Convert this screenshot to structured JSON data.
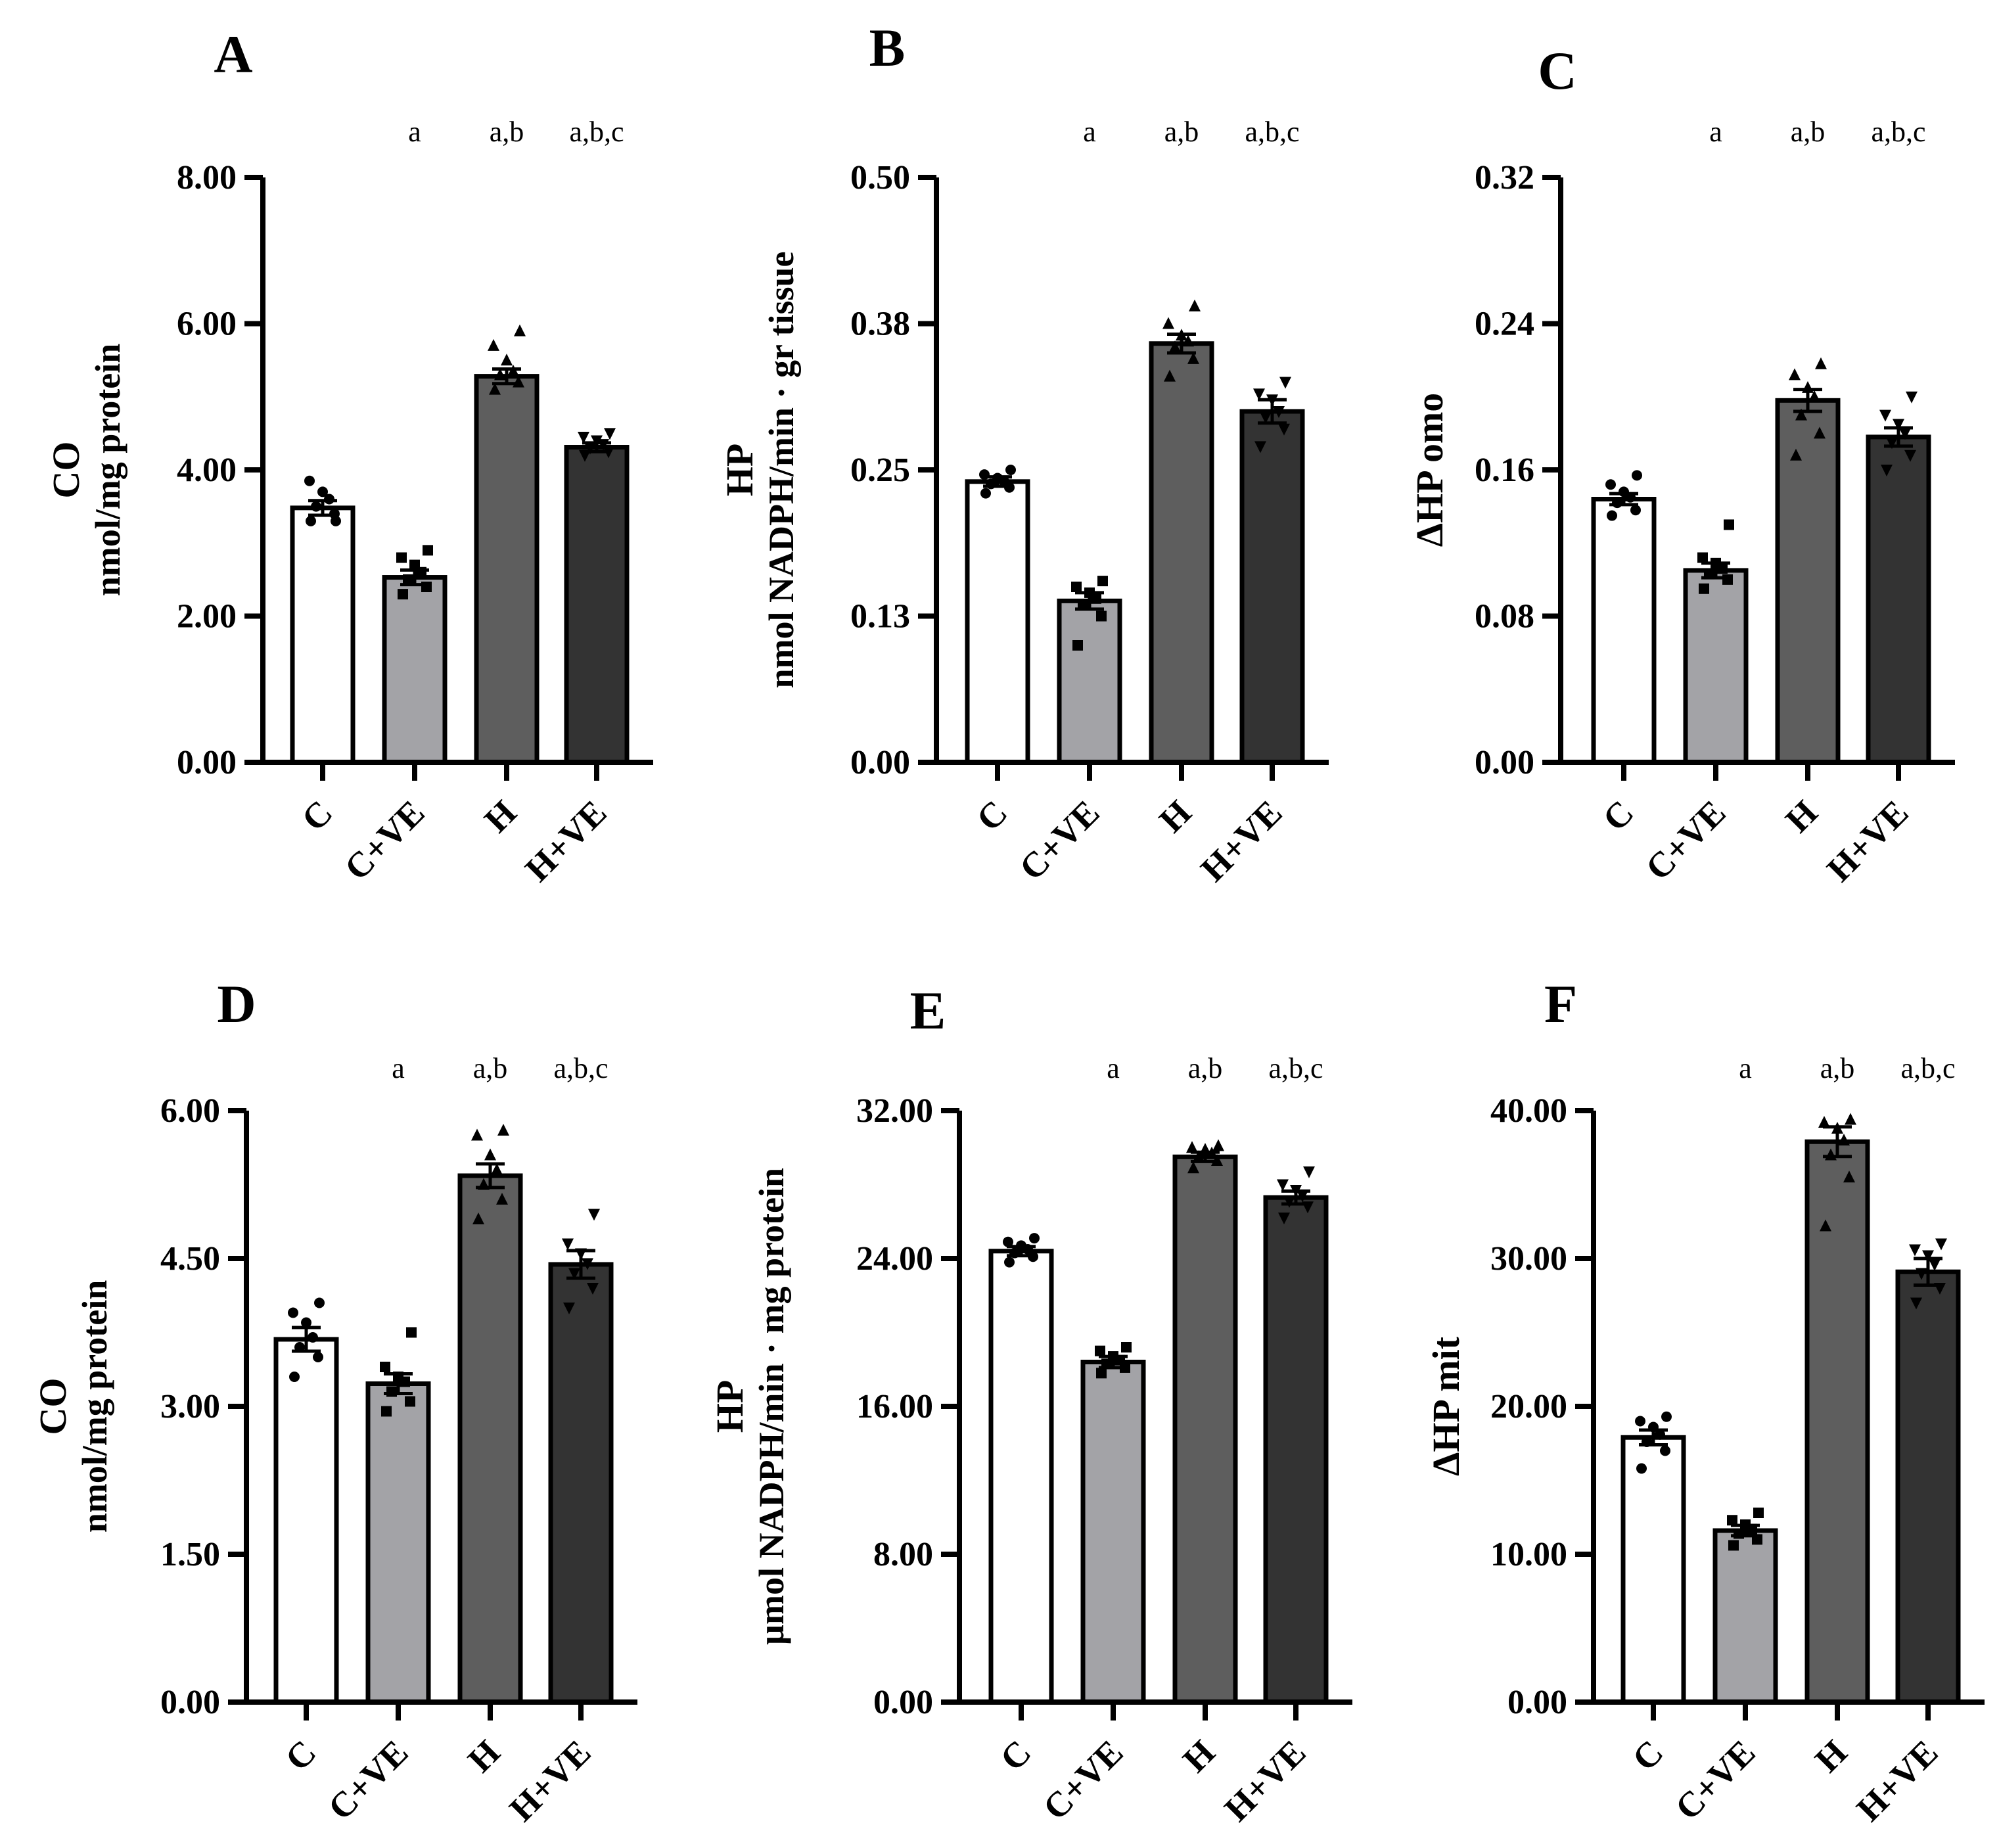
{
  "chart_data": [
    {
      "type": "bar",
      "panel": "A",
      "ylabel": "CO",
      "ylabel_sub": "nmol/mg protein",
      "categories": [
        "C",
        "C+VE",
        "H",
        "H+VE"
      ],
      "values": [
        3.48,
        2.53,
        5.28,
        4.31
      ],
      "sem": [
        0.1,
        0.1,
        0.1,
        0.06
      ],
      "points": [
        [
          3.3,
          3.4,
          3.5,
          3.6,
          3.7,
          3.85,
          3.3
        ],
        [
          2.3,
          2.4,
          2.5,
          2.6,
          2.7,
          2.8,
          2.9
        ],
        [
          5.1,
          5.2,
          5.3,
          5.35,
          5.5,
          5.7,
          5.9
        ],
        [
          4.2,
          4.25,
          4.3,
          4.35,
          4.4,
          4.45,
          4.5
        ]
      ],
      "significance": [
        "",
        "a",
        "a,b",
        "a,b,c"
      ],
      "ylim": [
        0,
        8
      ],
      "yticks": [
        "0.00",
        "2.00",
        "4.00",
        "6.00",
        "8.00"
      ],
      "colors": [
        "#ffffff",
        "#a3a3a7",
        "#5e5e5e",
        "#333333"
      ]
    },
    {
      "type": "bar",
      "panel": "B",
      "ylabel": "HP",
      "ylabel_sub": "nmol NADPH/min · gr tissue",
      "categories": [
        "C",
        "C+VE",
        "H",
        "H+VE"
      ],
      "values": [
        0.24,
        0.138,
        0.358,
        0.3
      ],
      "sem": [
        0.004,
        0.007,
        0.008,
        0.01
      ],
      "points": [
        [
          0.23,
          0.235,
          0.238,
          0.24,
          0.243,
          0.246,
          0.25
        ],
        [
          0.1,
          0.125,
          0.135,
          0.14,
          0.145,
          0.15,
          0.155
        ],
        [
          0.33,
          0.345,
          0.355,
          0.36,
          0.365,
          0.375,
          0.39
        ],
        [
          0.27,
          0.285,
          0.295,
          0.3,
          0.31,
          0.315,
          0.325
        ]
      ],
      "significance": [
        "",
        "a",
        "a,b",
        "a,b,c"
      ],
      "ylim": [
        0,
        0.5
      ],
      "yticks": [
        "0.00",
        "0.13",
        "0.25",
        "0.38",
        "0.50"
      ],
      "colors": [
        "#ffffff",
        "#a3a3a7",
        "#5e5e5e",
        "#333333"
      ]
    },
    {
      "type": "bar",
      "panel": "C",
      "ylabel": "ΔHP omo",
      "ylabel_sub": "",
      "categories": [
        "C",
        "C+VE",
        "H",
        "H+VE"
      ],
      "values": [
        0.144,
        0.105,
        0.198,
        0.178
      ],
      "sem": [
        0.003,
        0.004,
        0.006,
        0.005
      ],
      "points": [
        [
          0.135,
          0.138,
          0.142,
          0.145,
          0.148,
          0.152,
          0.157
        ],
        [
          0.095,
          0.1,
          0.103,
          0.106,
          0.109,
          0.112,
          0.13
        ],
        [
          0.168,
          0.18,
          0.19,
          0.2,
          0.205,
          0.212,
          0.218
        ],
        [
          0.16,
          0.168,
          0.175,
          0.18,
          0.185,
          0.19,
          0.2
        ]
      ],
      "significance": [
        "",
        "a",
        "a,b",
        "a,b,c"
      ],
      "ylim": [
        0,
        0.32
      ],
      "yticks": [
        "0.00",
        "0.08",
        "0.16",
        "0.24",
        "0.32"
      ],
      "colors": [
        "#ffffff",
        "#a3a3a7",
        "#5e5e5e",
        "#333333"
      ]
    },
    {
      "type": "bar",
      "panel": "D",
      "ylabel": "CO",
      "ylabel_sub": "nmol/mg protein",
      "categories": [
        "C",
        "C+VE",
        "H",
        "H+VE"
      ],
      "values": [
        3.68,
        3.23,
        5.34,
        4.44
      ],
      "sem": [
        0.12,
        0.1,
        0.12,
        0.14
      ],
      "points": [
        [
          3.3,
          3.5,
          3.6,
          3.7,
          3.85,
          3.95,
          4.05
        ],
        [
          2.95,
          3.05,
          3.15,
          3.25,
          3.3,
          3.4,
          3.75
        ],
        [
          4.9,
          5.1,
          5.25,
          5.4,
          5.55,
          5.75,
          5.8
        ],
        [
          4.0,
          4.2,
          4.35,
          4.45,
          4.55,
          4.65,
          4.95
        ]
      ],
      "significance": [
        "",
        "a",
        "a,b",
        "a,b,c"
      ],
      "ylim": [
        0,
        6
      ],
      "yticks": [
        "0.00",
        "1.50",
        "3.00",
        "4.50",
        "6.00"
      ],
      "colors": [
        "#ffffff",
        "#a3a3a7",
        "#5e5e5e",
        "#333333"
      ]
    },
    {
      "type": "bar",
      "panel": "E",
      "ylabel": "HP",
      "ylabel_sub": "µmol NADPH/min · mg protein",
      "categories": [
        "C",
        "C+VE",
        "H",
        "H+VE"
      ],
      "values": [
        24.4,
        18.4,
        29.5,
        27.3
      ],
      "sem": [
        0.25,
        0.3,
        0.25,
        0.35
      ],
      "points": [
        [
          23.8,
          24.1,
          24.3,
          24.5,
          24.7,
          24.9,
          25.1
        ],
        [
          17.8,
          18.1,
          18.3,
          18.5,
          18.7,
          19.0,
          19.2
        ],
        [
          28.9,
          29.3,
          29.5,
          29.7,
          29.9,
          30.0,
          30.1
        ],
        [
          26.2,
          26.8,
          27.1,
          27.4,
          27.7,
          28.0,
          28.7
        ]
      ],
      "significance": [
        "",
        "a",
        "a,b",
        "a,b,c"
      ],
      "ylim": [
        0,
        32
      ],
      "yticks": [
        "0.00",
        "8.00",
        "16.00",
        "24.00",
        "32.00"
      ],
      "colors": [
        "#ffffff",
        "#a3a3a7",
        "#5e5e5e",
        "#333333"
      ]
    },
    {
      "type": "bar",
      "panel": "F",
      "ylabel": "ΔHP mit",
      "ylabel_sub": "",
      "categories": [
        "C",
        "C+VE",
        "H",
        "H+VE"
      ],
      "values": [
        17.9,
        11.6,
        37.9,
        29.1
      ],
      "sem": [
        0.5,
        0.35,
        1.0,
        0.9
      ],
      "points": [
        [
          15.8,
          17.0,
          17.6,
          18.1,
          18.6,
          19.0,
          19.3
        ],
        [
          10.6,
          11.0,
          11.4,
          11.7,
          12.0,
          12.3,
          12.8
        ],
        [
          32.2,
          35.5,
          37.0,
          38.0,
          38.8,
          39.2,
          39.4
        ],
        [
          27.0,
          28.0,
          29.0,
          29.6,
          30.2,
          30.6,
          31.0
        ]
      ],
      "significance": [
        "",
        "a",
        "a,b",
        "a,b,c"
      ],
      "ylim": [
        0,
        40
      ],
      "yticks": [
        "0.00",
        "10.00",
        "20.00",
        "30.00",
        "40.00"
      ],
      "colors": [
        "#ffffff",
        "#a3a3a7",
        "#5e5e5e",
        "#333333"
      ]
    }
  ]
}
